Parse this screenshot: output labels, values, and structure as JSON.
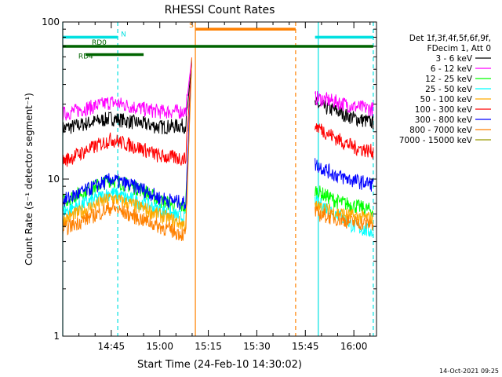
{
  "chart_data": {
    "type": "line",
    "title": "RHESSI Count Rates",
    "xlabel": "Start Time (24-Feb-10 14:30:02)",
    "ylabel": "Count Rate (s⁻¹ detector segment⁻¹)",
    "y_scale": "log",
    "ylim": [
      1,
      100
    ],
    "xlim": [
      "14:30",
      "16:07"
    ],
    "x_ticks": [
      "14:45",
      "15:00",
      "15:15",
      "15:30",
      "15:45",
      "16:00"
    ],
    "y_ticks": [
      "1",
      "10",
      "100"
    ],
    "grid": false,
    "legend_position": "right",
    "legend_header": [
      "Det 1f,3f,4f,5f,6f,9f,",
      "FDecim 1, Att 0"
    ],
    "timestamp": "14-Oct-2021 09:25",
    "data_gap": [
      "15:11",
      "15:49"
    ],
    "flare_peak_time": "15:10",
    "series": [
      {
        "name": "3 - 6 keV",
        "color": "#000000",
        "x": [
          "14:30",
          "14:45",
          "14:55",
          "15:00",
          "15:08",
          "15:10",
          "15:48",
          "15:55",
          "16:00",
          "16:06"
        ],
        "y": [
          21,
          24.5,
          22.5,
          21.5,
          22,
          58,
          30,
          27,
          24.5,
          23
        ]
      },
      {
        "name": "6 - 12 keV",
        "color": "#ff00ff",
        "x": [
          "14:30",
          "14:45",
          "14:55",
          "15:00",
          "15:08",
          "15:10",
          "15:48",
          "15:55",
          "16:00",
          "16:06"
        ],
        "y": [
          26,
          31,
          28,
          27,
          27,
          62,
          33,
          31,
          29,
          28
        ]
      },
      {
        "name": "12 - 25 keV",
        "color": "#00ff00",
        "x": [
          "14:30",
          "14:45",
          "14:55",
          "15:00",
          "15:08",
          "15:10",
          "15:48",
          "15:55",
          "16:00",
          "16:06"
        ],
        "y": [
          7.2,
          10,
          8.5,
          7.3,
          6.6,
          65,
          8.5,
          7.2,
          6.8,
          6.3
        ]
      },
      {
        "name": "25 - 50 keV",
        "color": "#00ffff",
        "x": [
          "14:30",
          "14:45",
          "14:55",
          "15:00",
          "15:08",
          "15:10",
          "15:48",
          "15:55",
          "16:00",
          "16:06"
        ],
        "y": [
          6.2,
          8.2,
          7,
          6.4,
          5.6,
          66,
          7.2,
          6,
          5,
          4.6
        ]
      },
      {
        "name": "50 - 100 keV",
        "color": "#ffaa00",
        "x": [
          "14:30",
          "14:45",
          "14:55",
          "15:00",
          "15:08",
          "15:10",
          "15:48",
          "15:55",
          "16:00",
          "16:06"
        ],
        "y": [
          5.5,
          7.6,
          6.5,
          5.9,
          5.1,
          67,
          6.7,
          6.1,
          5.8,
          5.6
        ]
      },
      {
        "name": "100 - 300 keV",
        "color": "#ff0000",
        "x": [
          "14:30",
          "14:45",
          "14:55",
          "15:00",
          "15:08",
          "15:10",
          "15:48",
          "15:55",
          "16:00",
          "16:06"
        ],
        "y": [
          13,
          18,
          15.5,
          14,
          13.5,
          60,
          22,
          18,
          16,
          15
        ]
      },
      {
        "name": "300 - 800 keV",
        "color": "#0000ff",
        "x": [
          "14:30",
          "14:45",
          "14:55",
          "15:00",
          "15:08",
          "15:10",
          "15:48",
          "15:55",
          "16:00",
          "16:06"
        ],
        "y": [
          7.3,
          10,
          8.6,
          7.6,
          7,
          64,
          12.5,
          10.5,
          9.8,
          9.3
        ]
      },
      {
        "name": "800 - 7000 keV",
        "color": "#ff8000",
        "x": [
          "14:30",
          "14:45",
          "14:55",
          "15:00",
          "15:08",
          "15:10",
          "15:48",
          "15:55",
          "16:00",
          "16:06"
        ],
        "y": [
          4.8,
          6.6,
          5.5,
          5,
          4.4,
          68,
          6.1,
          5.6,
          5.3,
          5.2
        ]
      },
      {
        "name": "7000 - 15000 keV",
        "color": "#999900",
        "x": [],
        "y": []
      }
    ],
    "annotations": [
      {
        "label": "N",
        "color": "#00e0e0",
        "x_start": "14:30",
        "x_end": "14:47",
        "y": 80
      },
      {
        "label": "",
        "color": "#00e0e0",
        "x_start": "15:48",
        "x_end": "16:06",
        "y": 80
      },
      {
        "label": "RD0",
        "color": "#006400",
        "x_start": "14:30",
        "x_end": "16:06",
        "y": 70
      },
      {
        "label": "RD4",
        "color": "#006400",
        "x_start": "14:37",
        "x_end": "14:55",
        "y": 62
      },
      {
        "label": "S",
        "color": "#ff8000",
        "x_start": "15:11",
        "x_end": "15:42",
        "y": 90
      }
    ],
    "vlines": [
      {
        "time": "14:30",
        "color": "#00e0e0",
        "style": "solid"
      },
      {
        "time": "14:47",
        "color": "#00e0e0",
        "style": "dashed"
      },
      {
        "time": "15:11",
        "color": "#ff8000",
        "style": "solid"
      },
      {
        "time": "15:42",
        "color": "#ff8000",
        "style": "dashed"
      },
      {
        "time": "15:49",
        "color": "#00e0e0",
        "style": "solid"
      },
      {
        "time": "16:06",
        "color": "#00e0e0",
        "style": "dashed"
      }
    ]
  }
}
